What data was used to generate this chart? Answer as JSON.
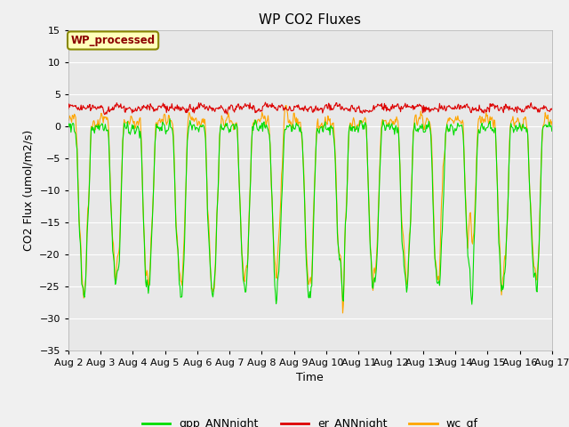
{
  "title": "WP CO2 Fluxes",
  "xlabel": "Time",
  "ylabel_display": "CO2 Flux (umol/m2/s)",
  "ylim": [
    -35,
    15
  ],
  "yticks": [
    -35,
    -30,
    -25,
    -20,
    -15,
    -10,
    -5,
    0,
    5,
    10,
    15
  ],
  "n_days": 15,
  "points_per_day": 48,
  "gpp_color": "#00dd00",
  "er_color": "#dd0000",
  "wc_color": "#ffa500",
  "background_color": "#e8e8e8",
  "annotation_text": "WP_processed",
  "annotation_facecolor": "#ffffbb",
  "annotation_edgecolor": "#888800",
  "annotation_textcolor": "#8b0000",
  "legend_labels": [
    "gpp_ANNnight",
    "er_ANNnight",
    "wc_gf"
  ],
  "linewidth": 0.8,
  "fig_facecolor": "#f0f0f0",
  "grid_color": "#ffffff"
}
